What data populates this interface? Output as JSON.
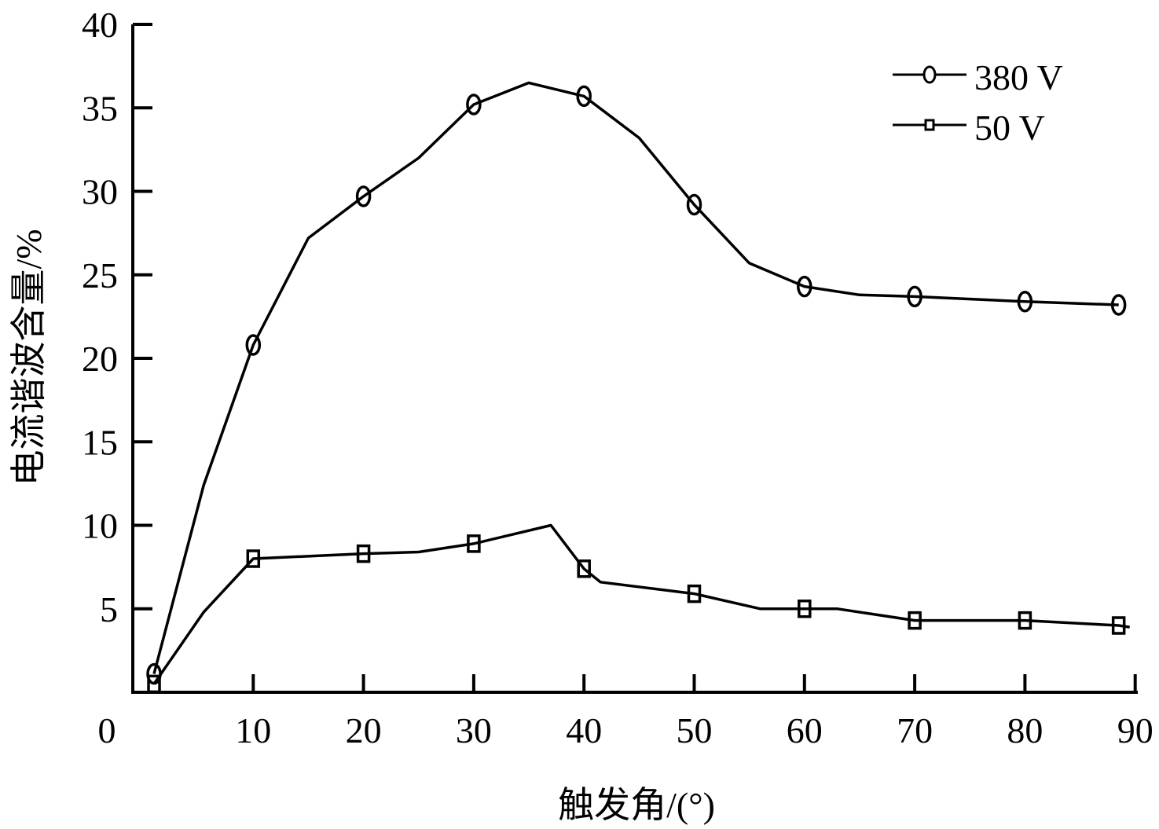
{
  "chart_data": {
    "type": "line",
    "title": "",
    "xlabel": "触发角/(°)",
    "ylabel": "电流谐波含量/%",
    "xlim": [
      0,
      90
    ],
    "ylim": [
      0,
      40
    ],
    "xticks": [
      0,
      10,
      20,
      30,
      40,
      50,
      60,
      70,
      80,
      90
    ],
    "yticks": [
      5,
      10,
      15,
      20,
      25,
      30,
      35,
      40
    ],
    "grid": false,
    "legend_position": "upper right",
    "series": [
      {
        "name": "380 V",
        "marker": "circle",
        "color": "#000000",
        "x": [
          1,
          5.5,
          10,
          15,
          20,
          25,
          30,
          35,
          40,
          45,
          50,
          55,
          60,
          65,
          70,
          80,
          88.5
        ],
        "values": [
          1.1,
          12.4,
          20.8,
          27.2,
          29.7,
          32.0,
          35.2,
          36.5,
          35.7,
          33.2,
          29.2,
          25.7,
          24.3,
          23.8,
          23.7,
          23.4,
          23.2
        ],
        "marker_x": [
          1,
          10,
          20,
          30,
          40,
          50,
          60,
          70,
          80,
          88.5
        ]
      },
      {
        "name": "50 V",
        "marker": "square",
        "color": "#000000",
        "x": [
          1,
          5.5,
          10,
          20,
          25,
          30,
          37,
          40,
          41.5,
          50,
          56,
          60,
          63,
          70,
          80,
          88.5,
          89.5
        ],
        "values": [
          0.5,
          4.8,
          8.0,
          8.3,
          8.4,
          8.9,
          10.0,
          7.4,
          6.6,
          5.9,
          5.0,
          5.0,
          5.0,
          4.3,
          4.3,
          4.0,
          3.9
        ],
        "marker_x": [
          1,
          10,
          20,
          30,
          40,
          50,
          60,
          70,
          80,
          88.5
        ]
      }
    ]
  },
  "axes": {
    "x_title": "触发角/(°)",
    "y_title": "电流谐波含量/%",
    "x_tick_labels": [
      "0",
      "10",
      "20",
      "30",
      "40",
      "50",
      "60",
      "70",
      "80",
      "90"
    ],
    "y_tick_labels": [
      "5",
      "10",
      "15",
      "20",
      "25",
      "30",
      "35",
      "40"
    ]
  },
  "legend": {
    "items": [
      {
        "label": "380 V",
        "marker": "circle"
      },
      {
        "label": "50 V",
        "marker": "square"
      }
    ]
  }
}
